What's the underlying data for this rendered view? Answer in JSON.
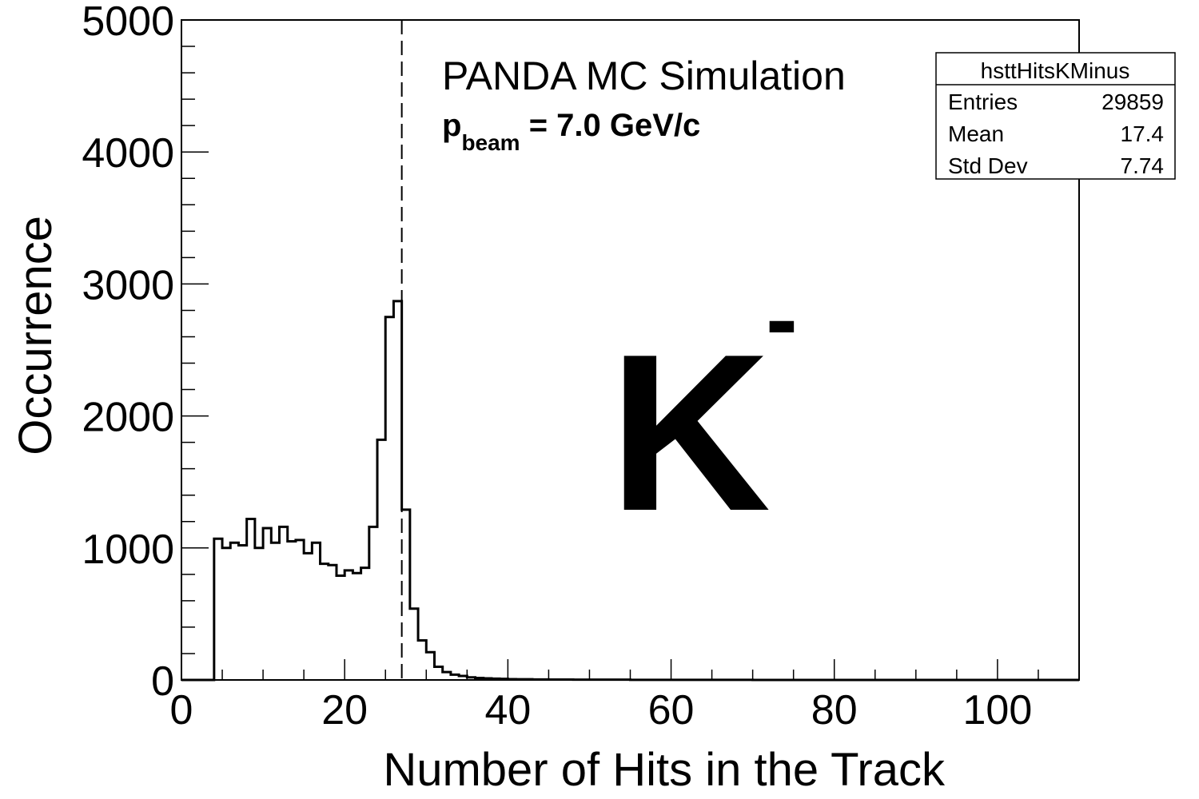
{
  "chart_data": {
    "type": "histogram",
    "xlabel": "Number of Hits in the Track",
    "ylabel": "Occurrence",
    "xlim": [
      0,
      110
    ],
    "ylim": [
      0,
      5000
    ],
    "x_ticks": [
      "0",
      "20",
      "40",
      "60",
      "80",
      "100"
    ],
    "y_ticks": [
      "0",
      "1000",
      "2000",
      "3000",
      "4000",
      "5000"
    ],
    "bin_width": 1,
    "bin_start": 0,
    "values": [
      0,
      0,
      0,
      0,
      1070,
      1000,
      1040,
      1020,
      1220,
      1000,
      1150,
      1040,
      1160,
      1050,
      1060,
      960,
      1040,
      880,
      870,
      790,
      830,
      810,
      850,
      1160,
      1820,
      2750,
      2870,
      1290,
      540,
      300,
      210,
      100,
      60,
      40,
      30,
      20,
      15,
      12,
      10,
      8,
      6,
      5,
      5,
      4,
      4,
      3,
      3,
      3,
      2,
      2,
      2,
      2,
      2,
      2,
      2,
      1,
      1,
      1,
      1,
      1,
      1,
      1,
      1,
      1,
      1,
      1,
      1,
      1,
      1,
      1,
      0,
      0,
      0,
      0,
      0,
      0,
      0,
      0,
      0,
      0,
      0,
      0,
      0,
      0,
      0,
      0,
      0,
      0,
      0,
      0,
      0,
      0,
      0,
      0,
      0,
      0,
      0,
      0,
      0,
      0,
      0,
      0,
      0,
      0,
      0,
      0,
      0,
      0,
      0,
      0
    ],
    "reference_line_x": 27,
    "annotations": {
      "title": "PANDA MC Simulation",
      "beam_p": "p",
      "beam_sub": "beam",
      "beam_value": " = 7.0 GeV/c",
      "particle": "K",
      "particle_sup": "-"
    },
    "stats": {
      "name": "hsttHitsKMinus",
      "rows": [
        {
          "label": "Entries",
          "value": "29859"
        },
        {
          "label": "Mean",
          "value": "17.4"
        },
        {
          "label": "Std Dev",
          "value": "7.74"
        }
      ]
    },
    "grid": false,
    "legend": "none"
  }
}
